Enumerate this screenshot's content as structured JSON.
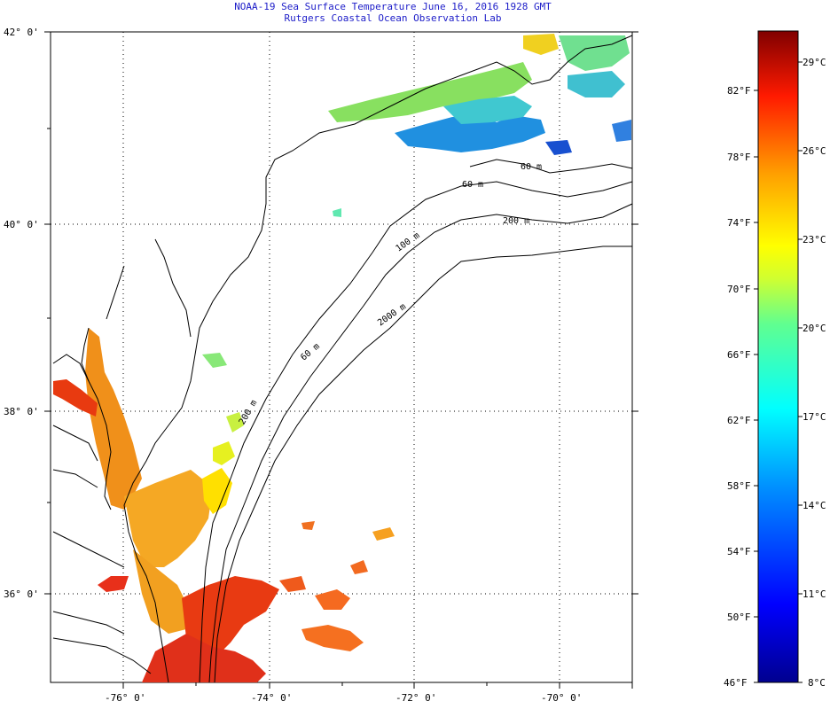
{
  "header": {
    "title": "NOAA-19 Sea Surface Temperature June 16, 2016 1928 GMT",
    "subtitle": "Rutgers Coastal Ocean Observation Lab"
  },
  "map": {
    "lat_labels": [
      "42° 0'",
      "40° 0'",
      "38° 0'",
      "36° 0'"
    ],
    "lon_labels": [
      "-76° 0'",
      "-74° 0'",
      "-72° 0'",
      "-70° 0'"
    ],
    "contour_labels": [
      "60 m",
      "60 m",
      "200 m",
      "100 m",
      "60 m",
      "2000 m",
      "200 m"
    ]
  },
  "colorbar": {
    "fahrenheit": [
      "82°F",
      "78°F",
      "74°F",
      "70°F",
      "66°F",
      "62°F",
      "58°F",
      "54°F",
      "50°F",
      "46°F"
    ],
    "celsius": [
      "29°C",
      "26°C",
      "23°C",
      "20°C",
      "17°C",
      "14°C",
      "11°C",
      "8°C"
    ]
  }
}
